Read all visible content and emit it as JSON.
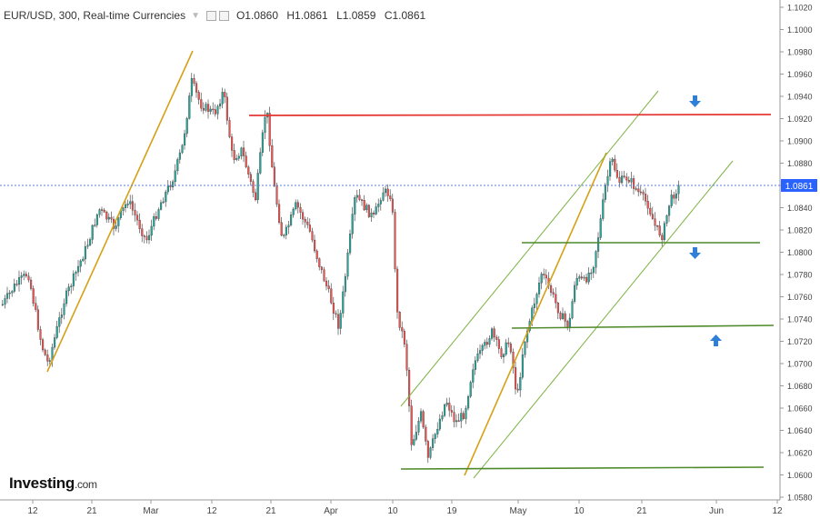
{
  "header": {
    "symbol_title": "EUR/USD, 300, Real-time Currencies",
    "ohlc": {
      "open": "O1.0860",
      "high": "H1.0861",
      "low": "L1.0859",
      "close": "C1.0861"
    }
  },
  "branding": {
    "name": "Investing",
    "suffix": ".com"
  },
  "price_axis": {
    "ticks": [
      "1.1020",
      "1.1000",
      "1.0980",
      "1.0960",
      "1.0940",
      "1.0920",
      "1.0900",
      "1.0880",
      "1.0860",
      "1.0840",
      "1.0820",
      "1.0800",
      "1.0780",
      "1.0760",
      "1.0740",
      "1.0720",
      "1.0700",
      "1.0680",
      "1.0660",
      "1.0640",
      "1.0620",
      "1.0600",
      "1.0580"
    ],
    "current_price": "1.0861"
  },
  "time_axis": {
    "ticks": [
      "12",
      "21",
      "Mar",
      "12",
      "21",
      "Apr",
      "10",
      "19",
      "May",
      "10",
      "21",
      "Jun",
      "12"
    ]
  },
  "colors": {
    "up_candle": "#26a69a",
    "down_candle": "#ef5350",
    "resistance_line": "#e53935",
    "support_line": "#5b8c2a",
    "channel_line": "#7cb342",
    "trend_line": "#d4a017",
    "arrow": "#2f7fd8",
    "price_label_bg": "#2962ff"
  },
  "annotations": {
    "arrows": [
      {
        "name": "down-arrow-icon-upper",
        "direction": "down"
      },
      {
        "name": "down-arrow-icon-middle",
        "direction": "down"
      },
      {
        "name": "up-arrow-icon-lower",
        "direction": "up"
      }
    ]
  }
}
